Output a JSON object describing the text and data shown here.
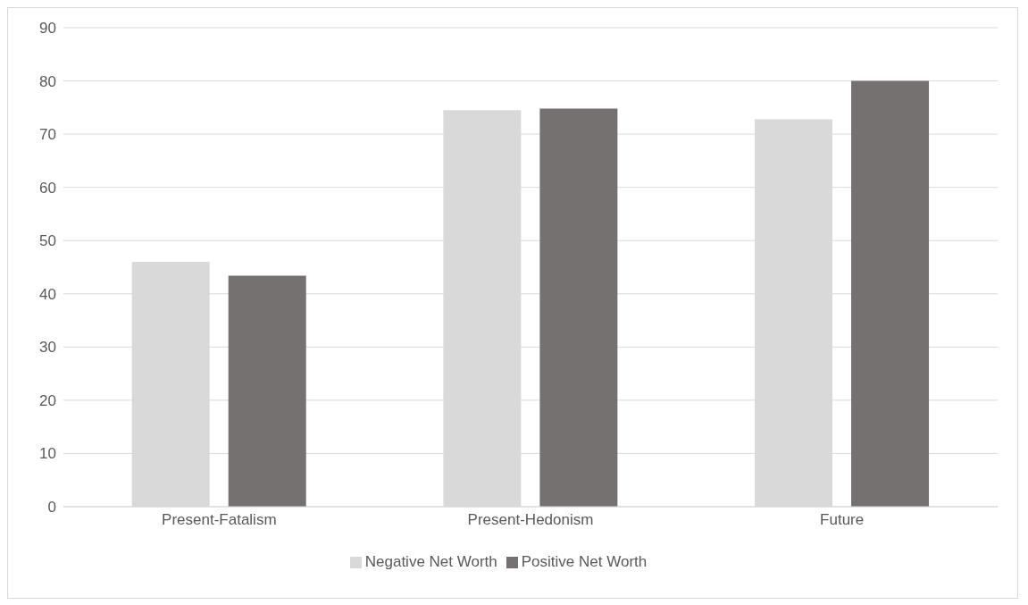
{
  "chart_data": {
    "type": "bar",
    "categories": [
      "Present-Fatalism",
      "Present-Hedonism",
      "Future"
    ],
    "series": [
      {
        "name": "Negative Net Worth",
        "color": "#d9d9d9",
        "values": [
          46.0,
          74.5,
          72.8
        ]
      },
      {
        "name": "Positive Net Worth",
        "color": "#767171",
        "values": [
          43.4,
          74.8,
          80.0
        ]
      }
    ],
    "ylim": [
      0,
      90
    ],
    "yticks": [
      0,
      10,
      20,
      30,
      40,
      50,
      60,
      70,
      80,
      90
    ],
    "grid": "y",
    "legend": "bottom"
  }
}
